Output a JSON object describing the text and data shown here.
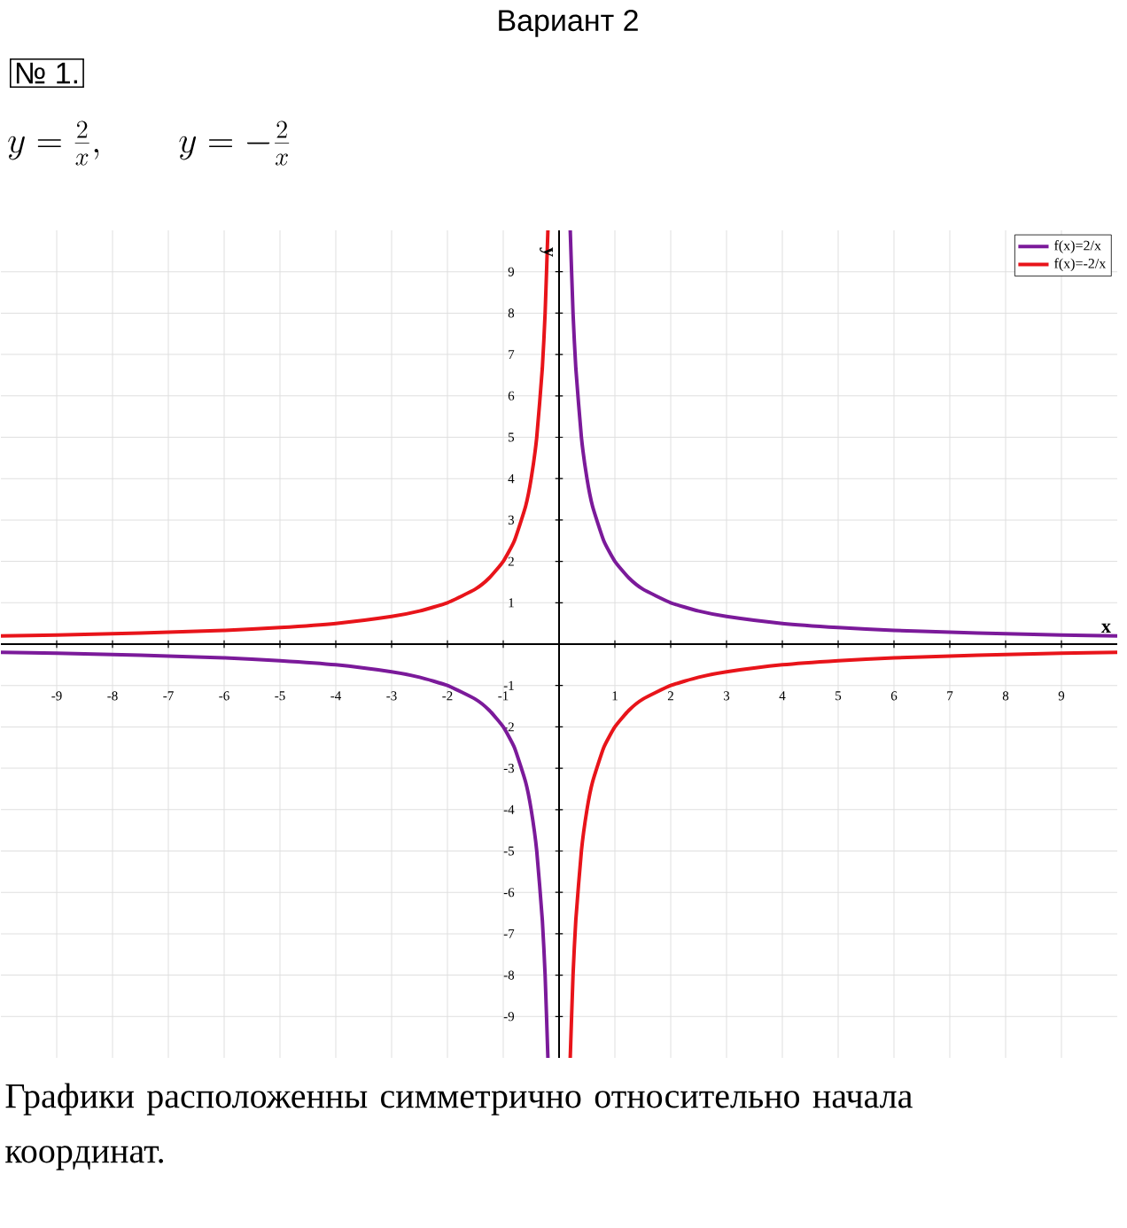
{
  "chart_data": {
    "type": "line",
    "title": "Вариант 2",
    "subtitle": "№ 1.",
    "annotations": [
      "y=\\frac{2}{x},\\qquad y=-\\frac{2}{x}",
      "Графики расположенны симметрично относительно начала координат."
    ],
    "xlabel": "x",
    "ylabel": "y",
    "xlim": [
      -10,
      10
    ],
    "ylim": [
      -10,
      10
    ],
    "xticks": [
      -9,
      -8,
      -7,
      -6,
      -5,
      -4,
      -3,
      -2,
      -1,
      1,
      2,
      3,
      4,
      5,
      6,
      7,
      8,
      9
    ],
    "yticks": [
      -9,
      -8,
      -7,
      -6,
      -5,
      -4,
      -3,
      -2,
      -1,
      1,
      2,
      3,
      4,
      5,
      6,
      7,
      8,
      9
    ],
    "grid": true,
    "legend": "top right",
    "marker": "none",
    "line_style": "solid",
    "x": [
      -10,
      -9,
      -8,
      -7,
      -6,
      -5,
      -4,
      -3,
      -2.5,
      -2,
      -1.5,
      -1.25,
      -1,
      -0.8,
      -0.6,
      -0.5,
      -0.4,
      -0.3,
      -0.25,
      -0.2,
      0,
      0.2,
      0.25,
      0.3,
      0.4,
      0.5,
      0.6,
      0.8,
      1,
      1.25,
      1.5,
      2,
      2.5,
      3,
      4,
      5,
      6,
      7,
      8,
      9,
      10
    ],
    "series": [
      {
        "name": "f(x)=2/x",
        "color": "#7b1a9a",
        "values": [
          -0.2,
          -0.22,
          -0.25,
          -0.29,
          -0.33,
          -0.4,
          -0.5,
          -0.67,
          -0.8,
          -1,
          -1.33,
          -1.6,
          -2,
          -2.5,
          -3.33,
          -4,
          -5,
          -6.67,
          -8,
          -10,
          null,
          10,
          8,
          6.67,
          5,
          4,
          3.33,
          2.5,
          2,
          1.6,
          1.33,
          1,
          0.8,
          0.67,
          0.5,
          0.4,
          0.33,
          0.29,
          0.25,
          0.22,
          0.2
        ]
      },
      {
        "name": "f(x)=-2/x",
        "color": "#e8141a",
        "values": [
          0.2,
          0.22,
          0.25,
          0.29,
          0.33,
          0.4,
          0.5,
          0.67,
          0.8,
          1,
          1.33,
          1.6,
          2,
          2.5,
          3.33,
          4,
          5,
          6.67,
          8,
          10,
          null,
          -10,
          -8,
          -6.67,
          -5,
          -4,
          -3.33,
          -2.5,
          -2,
          -1.6,
          -1.33,
          -1,
          -0.8,
          -0.67,
          -0.5,
          -0.4,
          -0.33,
          -0.29,
          -0.25,
          -0.22,
          -0.2
        ]
      }
    ]
  }
}
